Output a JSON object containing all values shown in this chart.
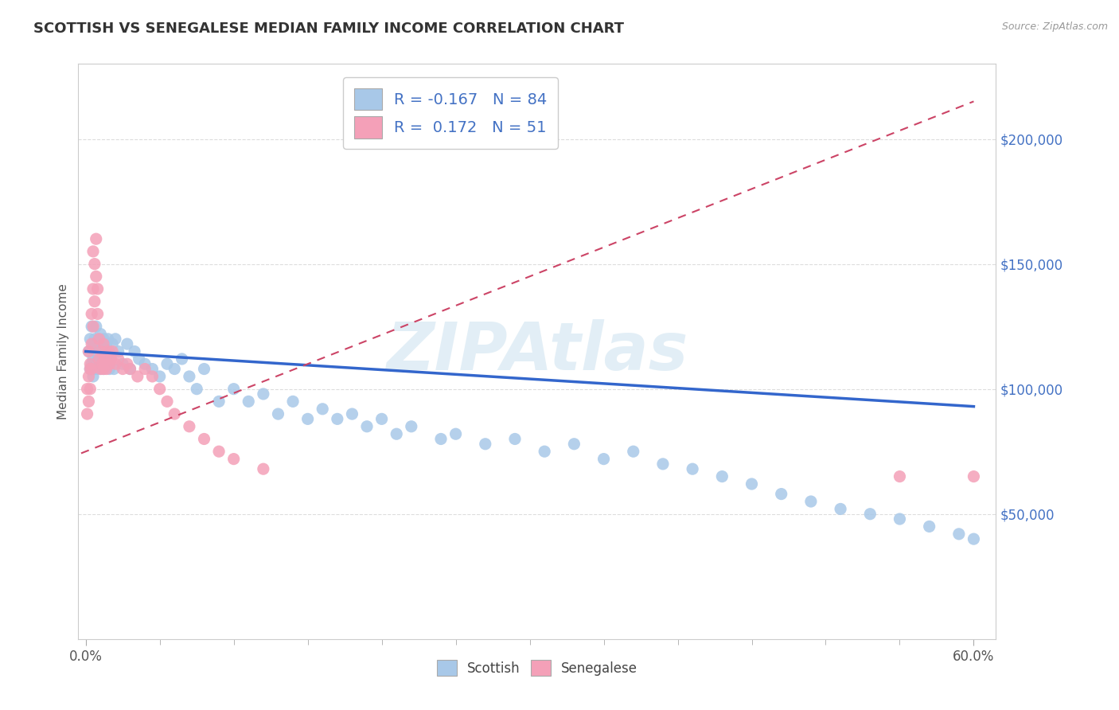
{
  "title": "SCOTTISH VS SENEGALESE MEDIAN FAMILY INCOME CORRELATION CHART",
  "source": "Source: ZipAtlas.com",
  "ylabel": "Median Family Income",
  "xlim": [
    -0.005,
    0.615
  ],
  "ylim": [
    0,
    230000
  ],
  "yticks": [
    50000,
    100000,
    150000,
    200000
  ],
  "ytick_labels": [
    "$50,000",
    "$100,000",
    "$150,000",
    "$200,000"
  ],
  "xtick_left_label": "0.0%",
  "xtick_right_label": "60.0%",
  "scottish_color": "#a8c8e8",
  "senegalese_color": "#f4a0b8",
  "scottish_line_color": "#3366cc",
  "senegalese_line_color": "#cc4466",
  "R_scottish": -0.167,
  "N_scottish": 84,
  "R_senegalese": 0.172,
  "N_senegalese": 51,
  "watermark": "ZIPAtlas",
  "background_color": "#ffffff",
  "grid_color": "#dddddd",
  "scottish_x": [
    0.002,
    0.003,
    0.003,
    0.004,
    0.004,
    0.005,
    0.005,
    0.005,
    0.006,
    0.006,
    0.007,
    0.007,
    0.007,
    0.008,
    0.008,
    0.009,
    0.009,
    0.01,
    0.01,
    0.01,
    0.011,
    0.011,
    0.012,
    0.012,
    0.013,
    0.013,
    0.014,
    0.015,
    0.015,
    0.016,
    0.016,
    0.017,
    0.018,
    0.019,
    0.02,
    0.022,
    0.025,
    0.028,
    0.03,
    0.033,
    0.036,
    0.04,
    0.045,
    0.05,
    0.055,
    0.06,
    0.065,
    0.07,
    0.075,
    0.08,
    0.09,
    0.1,
    0.11,
    0.12,
    0.13,
    0.14,
    0.15,
    0.16,
    0.17,
    0.18,
    0.19,
    0.2,
    0.21,
    0.22,
    0.24,
    0.25,
    0.27,
    0.29,
    0.31,
    0.33,
    0.35,
    0.37,
    0.39,
    0.41,
    0.43,
    0.45,
    0.47,
    0.49,
    0.51,
    0.53,
    0.55,
    0.57,
    0.59,
    0.6
  ],
  "scottish_y": [
    115000,
    120000,
    108000,
    125000,
    110000,
    118000,
    112000,
    105000,
    120000,
    108000,
    125000,
    115000,
    108000,
    118000,
    112000,
    120000,
    110000,
    122000,
    115000,
    108000,
    118000,
    112000,
    120000,
    108000,
    115000,
    110000,
    118000,
    120000,
    112000,
    108000,
    115000,
    112000,
    118000,
    108000,
    120000,
    115000,
    110000,
    118000,
    108000,
    115000,
    112000,
    110000,
    108000,
    105000,
    110000,
    108000,
    112000,
    105000,
    100000,
    108000,
    95000,
    100000,
    95000,
    98000,
    90000,
    95000,
    88000,
    92000,
    88000,
    90000,
    85000,
    88000,
    82000,
    85000,
    80000,
    82000,
    78000,
    80000,
    75000,
    78000,
    72000,
    75000,
    70000,
    68000,
    65000,
    62000,
    58000,
    55000,
    52000,
    50000,
    48000,
    45000,
    42000,
    40000
  ],
  "senegalese_x": [
    0.001,
    0.001,
    0.002,
    0.002,
    0.002,
    0.003,
    0.003,
    0.003,
    0.004,
    0.004,
    0.004,
    0.005,
    0.005,
    0.005,
    0.006,
    0.006,
    0.007,
    0.007,
    0.008,
    0.008,
    0.009,
    0.009,
    0.01,
    0.01,
    0.011,
    0.012,
    0.012,
    0.013,
    0.014,
    0.015,
    0.016,
    0.017,
    0.018,
    0.02,
    0.022,
    0.025,
    0.028,
    0.03,
    0.035,
    0.04,
    0.045,
    0.05,
    0.055,
    0.06,
    0.07,
    0.08,
    0.09,
    0.1,
    0.12,
    0.55,
    0.6
  ],
  "senegalese_y": [
    100000,
    90000,
    115000,
    105000,
    95000,
    110000,
    108000,
    100000,
    130000,
    118000,
    108000,
    155000,
    140000,
    125000,
    150000,
    135000,
    160000,
    145000,
    140000,
    130000,
    120000,
    112000,
    115000,
    108000,
    110000,
    118000,
    108000,
    112000,
    108000,
    115000,
    110000,
    112000,
    115000,
    110000,
    112000,
    108000,
    110000,
    108000,
    105000,
    108000,
    105000,
    100000,
    95000,
    90000,
    85000,
    80000,
    75000,
    72000,
    68000,
    65000,
    65000
  ],
  "senegalese_trend_x0": 0.0,
  "senegalese_trend_y0": 75000,
  "senegalese_trend_x1": 0.6,
  "senegalese_trend_y1": 215000,
  "scottish_trend_x0": 0.0,
  "scottish_trend_y0": 115000,
  "scottish_trend_x1": 0.6,
  "scottish_trend_y1": 93000
}
